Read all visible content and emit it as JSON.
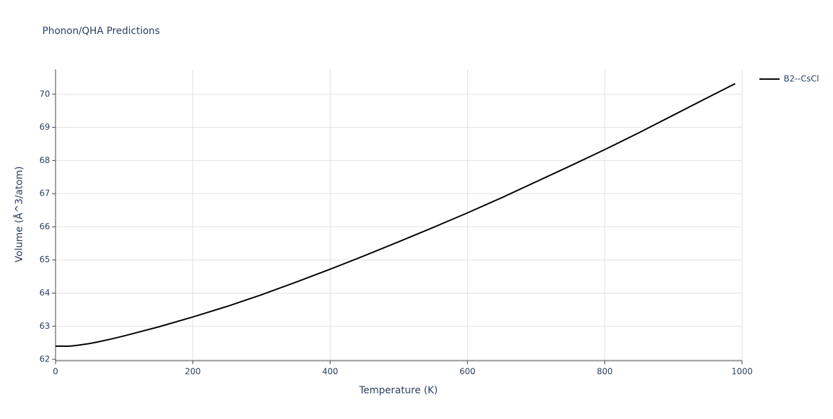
{
  "chart_data": {
    "type": "line",
    "title": "Phonon/QHA Predictions",
    "x_label": "Temperature (K)",
    "y_label": "Volume (Å^3/atom)",
    "x": [
      0,
      10,
      20,
      30,
      40,
      50,
      60,
      80,
      100,
      150,
      200,
      250,
      300,
      350,
      400,
      450,
      500,
      550,
      600,
      650,
      700,
      750,
      800,
      850,
      900,
      950,
      990
    ],
    "series": [
      {
        "name": "B2--CsCl",
        "color": "#000000",
        "values": [
          62.4,
          62.4,
          62.4,
          62.42,
          62.45,
          62.48,
          62.52,
          62.61,
          62.71,
          62.98,
          63.28,
          63.6,
          63.95,
          64.33,
          64.72,
          65.13,
          65.55,
          65.98,
          66.42,
          66.88,
          67.36,
          67.84,
          68.33,
          68.84,
          69.37,
          69.9,
          70.32
        ]
      }
    ],
    "xlim": [
      0,
      1000
    ],
    "xticks": [
      0,
      200,
      400,
      600,
      800,
      1000
    ],
    "ylim": [
      61.96,
      70.75
    ],
    "yticks": [
      62,
      63,
      64,
      65,
      66,
      67,
      68,
      69,
      70
    ],
    "grid": true,
    "legend": "right"
  }
}
